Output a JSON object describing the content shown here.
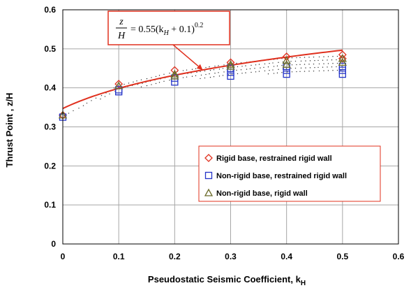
{
  "chart_data": {
    "type": "scatter",
    "xlabel": "Pseudostatic Seismic Coefficient, k",
    "xlabel_sub": "H",
    "ylabel": "Thrust Point , z/H",
    "xlim": [
      0,
      0.6
    ],
    "ylim": [
      0,
      0.6
    ],
    "x_ticks": [
      "0",
      "0.1",
      "0.2",
      "0.3",
      "0.4",
      "0.5",
      "0.6"
    ],
    "y_ticks": [
      "0",
      "0.1",
      "0.2",
      "0.3",
      "0.4",
      "0.5",
      "0.6"
    ],
    "grid": true,
    "legend_position": "bottom-right",
    "series": [
      {
        "name": "Rigid base, restrained rigid wall",
        "marker": "diamond",
        "color": "#e0301e",
        "points": [
          [
            0,
            0.33
          ],
          [
            0.1,
            0.41
          ],
          [
            0.2,
            0.445
          ],
          [
            0.3,
            0.465
          ],
          [
            0.4,
            0.48
          ],
          [
            0.5,
            0.485
          ],
          [
            0.5,
            0.475
          ]
        ]
      },
      {
        "name": "Non-rigid base, restrained rigid wall",
        "marker": "square",
        "color": "#2433c8",
        "points": [
          [
            0,
            0.325
          ],
          [
            0.1,
            0.39
          ],
          [
            0.1,
            0.395
          ],
          [
            0.2,
            0.415
          ],
          [
            0.2,
            0.425
          ],
          [
            0.3,
            0.43
          ],
          [
            0.3,
            0.44
          ],
          [
            0.3,
            0.45
          ],
          [
            0.4,
            0.435
          ],
          [
            0.4,
            0.445
          ],
          [
            0.4,
            0.455
          ],
          [
            0.5,
            0.435
          ],
          [
            0.5,
            0.445
          ],
          [
            0.5,
            0.455
          ]
        ]
      },
      {
        "name": "Non-rigid base, rigid wall",
        "marker": "triangle",
        "color": "#6b6b2a",
        "points": [
          [
            0,
            0.33
          ],
          [
            0.1,
            0.405
          ],
          [
            0.2,
            0.435
          ],
          [
            0.2,
            0.43
          ],
          [
            0.3,
            0.455
          ],
          [
            0.3,
            0.46
          ],
          [
            0.4,
            0.46
          ],
          [
            0.4,
            0.47
          ],
          [
            0.5,
            0.465
          ],
          [
            0.5,
            0.475
          ]
        ]
      },
      {
        "name": "",
        "type": "line",
        "color": "#e0301e",
        "function": "0.55*(x+0.1)^0.2",
        "x_range": [
          0,
          0.5
        ]
      }
    ],
    "shaded_band": {
      "color": "#333333",
      "upper": [
        [
          0,
          0.33
        ],
        [
          0.1,
          0.41
        ],
        [
          0.2,
          0.445
        ],
        [
          0.3,
          0.465
        ],
        [
          0.4,
          0.48
        ],
        [
          0.5,
          0.485
        ]
      ],
      "lower": [
        [
          0,
          0.325
        ],
        [
          0.1,
          0.39
        ],
        [
          0.2,
          0.415
        ],
        [
          0.3,
          0.43
        ],
        [
          0.4,
          0.435
        ],
        [
          0.5,
          0.435
        ]
      ]
    },
    "annotation": {
      "lhs_num": "z",
      "lhs_den": "H",
      "rhs": "= 0.55(k",
      "rhs_sub": "H",
      "rhs_tail": " + 0.1)",
      "rhs_exp": "0.2",
      "arrow_target": [
        0.25,
        0.446
      ]
    }
  }
}
